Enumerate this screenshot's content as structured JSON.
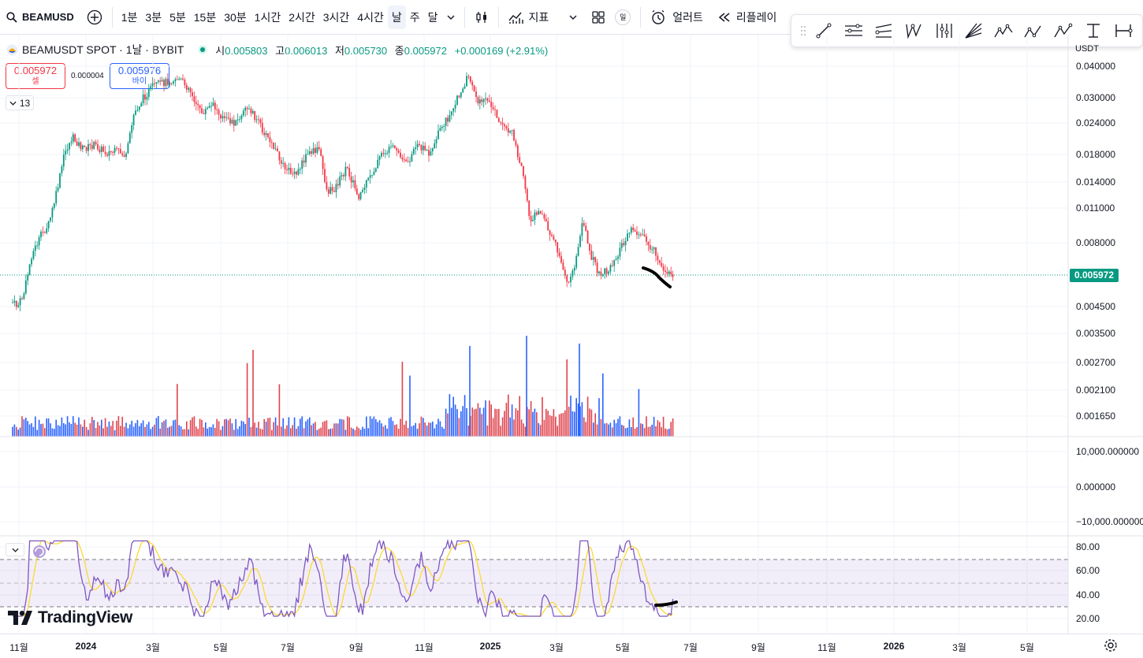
{
  "toolbar": {
    "symbol": "BEAMUSD",
    "timeframes": [
      "1분",
      "3분",
      "5분",
      "15분",
      "30분",
      "1시간",
      "2시간",
      "3시간",
      "4시간",
      "날",
      "주",
      "달"
    ],
    "active_timeframe": "날",
    "indicators_label": "지표",
    "alert_label": "얼러트",
    "replay_label": "리플레이",
    "badge": "일"
  },
  "legend": {
    "title": "BEAMUSDT SPOT · 1날 · BYBIT",
    "open_label": "시",
    "open": "0.005803",
    "high_label": "고",
    "high": "0.006013",
    "low_label": "저",
    "low": "0.005730",
    "close_label": "종",
    "close": "0.005972",
    "change": "+0.000169 (+2.91%)"
  },
  "trade": {
    "sell_price": "0.005972",
    "sell_label": "셀",
    "spread": "0.000004",
    "buy_price": "0.005976",
    "buy_label": "바이"
  },
  "collapse_count": "13",
  "price_axis": {
    "currency": "USDT",
    "labels": [
      "0.040000",
      "0.030000",
      "0.024000",
      "0.018000",
      "0.014000",
      "0.011000",
      "0.008000",
      "0.004500",
      "0.003500",
      "0.002700",
      "0.002100",
      "0.001650"
    ],
    "current_price": "0.005972"
  },
  "mid_axis": {
    "labels": [
      "10,000.000000",
      "0.000000",
      "−10,000.000000"
    ]
  },
  "rsi_axis": {
    "labels": [
      "80.00",
      "60.00",
      "40.00",
      "20.00"
    ]
  },
  "time_axis": {
    "labels": [
      {
        "text": "11월",
        "bold": false
      },
      {
        "text": "2024",
        "bold": true
      },
      {
        "text": "3월",
        "bold": false
      },
      {
        "text": "5월",
        "bold": false
      },
      {
        "text": "7월",
        "bold": false
      },
      {
        "text": "9월",
        "bold": false
      },
      {
        "text": "11월",
        "bold": false
      },
      {
        "text": "2025",
        "bold": true
      },
      {
        "text": "3월",
        "bold": false
      },
      {
        "text": "5월",
        "bold": false
      },
      {
        "text": "7월",
        "bold": false
      },
      {
        "text": "9월",
        "bold": false
      },
      {
        "text": "11월",
        "bold": false
      },
      {
        "text": "2026",
        "bold": true
      },
      {
        "text": "3월",
        "bold": false
      },
      {
        "text": "5월",
        "bold": false
      }
    ]
  },
  "logo": "TradingView",
  "colors": {
    "up": "#089981",
    "down": "#f23645",
    "vol_up": "#2962ff",
    "vol_down": "#e0434c",
    "rsi": "#7e57c2",
    "rsi_ma": "#fdd835"
  }
}
